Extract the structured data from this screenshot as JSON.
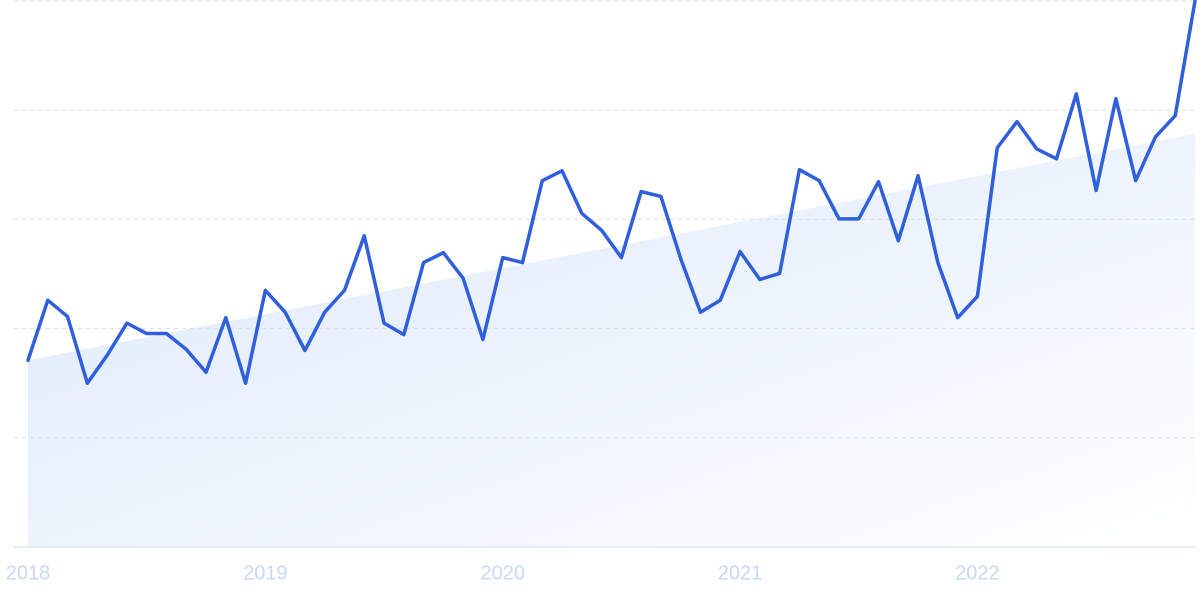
{
  "chart_data": {
    "type": "line",
    "categories": [
      "2018",
      null,
      null,
      null,
      null,
      null,
      null,
      null,
      null,
      null,
      null,
      null,
      "2019",
      null,
      null,
      null,
      null,
      null,
      null,
      null,
      null,
      null,
      null,
      null,
      "2020",
      null,
      null,
      null,
      null,
      null,
      null,
      null,
      null,
      null,
      null,
      null,
      "2021",
      null,
      null,
      null,
      null,
      null,
      null,
      null,
      null,
      null,
      null,
      null,
      "2022",
      null,
      null,
      null,
      null,
      null,
      null,
      null,
      null,
      null,
      null,
      null
    ],
    "series": [
      {
        "color": "#2f5fdc",
        "values": [
          34.2,
          45.2,
          42.2,
          30.0,
          35.1,
          41.0,
          39.1,
          39.1,
          36.2,
          32.0,
          42.0,
          30.0,
          47.0,
          43.0,
          36.0,
          43.0,
          47.0,
          57.0,
          41.0,
          38.9,
          52.1,
          53.9,
          49.2,
          38.0,
          53.0,
          52.1,
          67.1,
          68.9,
          61.1,
          58.0,
          53.0,
          65.1,
          64.2,
          52.8,
          43.0,
          45.2,
          54.1,
          49.0,
          50.1,
          69.1,
          67.1,
          60.1,
          60.1,
          66.9,
          56.1,
          68.0,
          52.1,
          42.0,
          45.9,
          73.1,
          77.9,
          72.9,
          71.1,
          83.0,
          65.3,
          82.1,
          67.1,
          75.1,
          79.0,
          100
        ]
      }
    ],
    "trend": [
      34.2,
      75.7
    ],
    "ylim": [
      0,
      100
    ],
    "gridlines": [
      20,
      40,
      60,
      80,
      100
    ],
    "grid": true
  }
}
